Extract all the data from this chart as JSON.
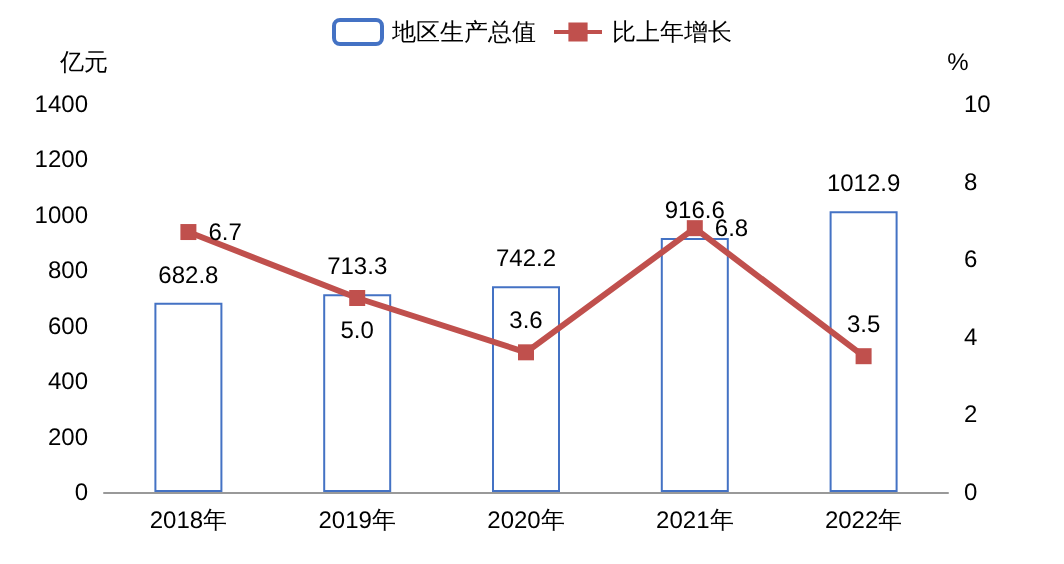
{
  "chart_data": {
    "type": "bar",
    "categories": [
      "2018年",
      "2019年",
      "2020年",
      "2021年",
      "2022年"
    ],
    "series": [
      {
        "name": "地区生产总值",
        "color": "#4472c4",
        "values": [
          682.8,
          713.3,
          742.2,
          916.6,
          1012.9
        ]
      },
      {
        "name": "比上年增长",
        "type": "line",
        "axis": "y2",
        "color": "#c0504d",
        "values": [
          6.7,
          5.0,
          3.6,
          6.8,
          3.5
        ],
        "value_labels": [
          "6.7",
          "5.0",
          "3.6",
          "6.8",
          "3.5"
        ]
      }
    ],
    "ylabel": "亿元",
    "y2label": "%",
    "ylim": [
      0,
      1400
    ],
    "yticks": [
      0,
      200,
      400,
      600,
      800,
      1000,
      1200,
      1400
    ],
    "y2lim": [
      0,
      10
    ],
    "y2ticks": [
      0,
      2,
      4,
      6,
      8,
      10
    ],
    "data_labels": true,
    "legend": "top",
    "marker": "square",
    "grid": false
  }
}
